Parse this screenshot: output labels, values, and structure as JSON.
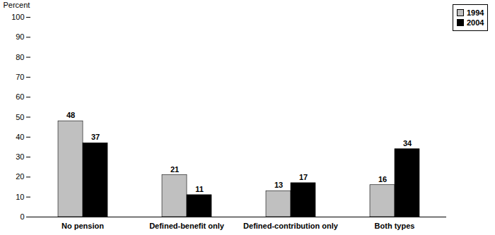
{
  "chart_data": {
    "type": "bar",
    "y_label": "Percent",
    "categories": [
      "No pension",
      "Defined-benefit only",
      "Defined-contribution only",
      "Both types"
    ],
    "series": [
      {
        "name": "1994",
        "color": "#c0c0c0",
        "values": [
          48,
          21,
          13,
          16
        ]
      },
      {
        "name": "2004",
        "color": "#000000",
        "values": [
          37,
          11,
          17,
          34
        ]
      }
    ],
    "ylim": [
      0,
      100
    ],
    "yticks": [
      0,
      10,
      20,
      30,
      40,
      50,
      60,
      70,
      80,
      90,
      100
    ],
    "grid": false,
    "legend": "top-right",
    "data_labels": true
  }
}
